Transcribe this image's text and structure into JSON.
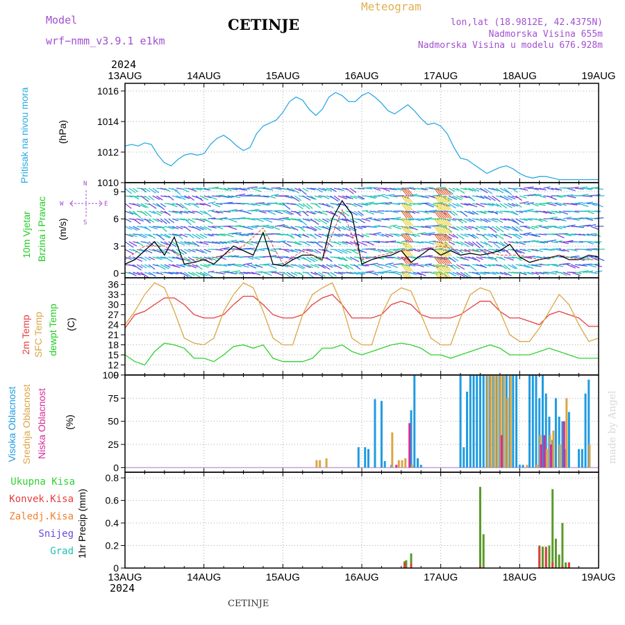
{
  "header": {
    "model_label": "Model",
    "model_name": "wrf−nmm_v3.9.1 e1km",
    "station": "CETINJE",
    "product": "Meteogram",
    "lonlat": "lon,lat (18.9812E, 42.4375N)",
    "elevation": "Nadmorska Visina 655m",
    "model_elevation": "Nadmorska Visina u modelu 676.928m",
    "year_top": "2024",
    "year_bottom": "2024",
    "footer_station": "CETINJE",
    "credit": "made by Angel"
  },
  "colors": {
    "pressure": "#2aaae2",
    "temp2m": "#e63c3c",
    "sfc": "#dba544",
    "dewpt": "#2fd12f",
    "high_cloud": "#1e9be0",
    "mid_cloud": "#dba544",
    "low_cloud": "#d62c9c",
    "total_precip": "#5a9a2a",
    "conv_precip": "#e63c3c",
    "frozen_precip": "#f08030",
    "snow": "#6a48d8",
    "hail": "#22c0b0",
    "header_purple": "#a050d0",
    "header_gold": "#e0b050"
  },
  "chart_data": [
    {
      "type": "line",
      "panel": "pressure",
      "title": "",
      "ylabel": [
        "Pritisak na nivou mora",
        "(hPa)"
      ],
      "ylim": [
        1010,
        1016.5
      ],
      "yticks": [
        1010,
        1012,
        1014,
        1016
      ],
      "x_unit": "hours since 13AUG 00UTC",
      "xlim": [
        0,
        144
      ],
      "xticks": [
        "13AUG",
        "14AUG",
        "15AUG",
        "16AUG",
        "17AUG",
        "18AUG",
        "19AUG"
      ],
      "grid": true,
      "series": [
        {
          "name": "Pritisak na nivou mora",
          "x": [
            0,
            2,
            4,
            6,
            8,
            10,
            12,
            14,
            16,
            18,
            20,
            22,
            24,
            26,
            28,
            30,
            32,
            34,
            36,
            38,
            40,
            42,
            44,
            46,
            48,
            50,
            52,
            54,
            56,
            58,
            60,
            62,
            64,
            66,
            68,
            70,
            72,
            74,
            76,
            78,
            80,
            82,
            84,
            86,
            88,
            90,
            92,
            94,
            96,
            98,
            100,
            102,
            104,
            106,
            108,
            110,
            112,
            114,
            116,
            118,
            120,
            122,
            124,
            126,
            128,
            130,
            132,
            134,
            136,
            138,
            140,
            142,
            144
          ],
          "values": [
            1012.4,
            1012.5,
            1012.4,
            1012.6,
            1012.5,
            1011.8,
            1011.3,
            1011.1,
            1011.5,
            1011.8,
            1011.9,
            1011.8,
            1011.9,
            1012.5,
            1012.9,
            1013.1,
            1012.8,
            1012.4,
            1012.1,
            1012.3,
            1013.2,
            1013.7,
            1013.9,
            1014.1,
            1014.6,
            1015.3,
            1015.6,
            1015.4,
            1014.8,
            1014.4,
            1014.8,
            1015.6,
            1015.9,
            1015.7,
            1015.3,
            1015.3,
            1015.7,
            1015.9,
            1015.6,
            1015.2,
            1014.7,
            1014.5,
            1014.8,
            1015.1,
            1014.7,
            1014.2,
            1013.8,
            1013.9,
            1013.7,
            1013.2,
            1012.3,
            1011.6,
            1011.5,
            1011.2,
            1010.9,
            1010.6,
            1010.8,
            1011.0,
            1011.1,
            1010.9,
            1010.6,
            1010.4,
            1010.3,
            1010.4,
            1010.4,
            1010.3,
            1010.2,
            1010.2,
            1010.2,
            1010.2,
            1010.2,
            1010.2,
            1010.2
          ]
        }
      ]
    },
    {
      "type": "line",
      "panel": "wind",
      "title": "",
      "ylabel": [
        "10m Vjetar",
        "Brzina i Pravac",
        "(m/s)"
      ],
      "compass": {
        "n": "N",
        "s": "S",
        "e": "E",
        "w": "W"
      },
      "ylim": [
        -0.5,
        10
      ],
      "yticks": [
        0,
        3,
        6,
        9
      ],
      "xlim": [
        0,
        144
      ],
      "grid": true,
      "series": [
        {
          "name": "10m Vjetar",
          "x": [
            0,
            3,
            6,
            9,
            12,
            15,
            18,
            21,
            24,
            27,
            30,
            33,
            36,
            39,
            42,
            45,
            48,
            51,
            54,
            57,
            60,
            63,
            66,
            69,
            72,
            75,
            78,
            81,
            84,
            87,
            90,
            93,
            96,
            99,
            102,
            105,
            108,
            111,
            114,
            117,
            120,
            123,
            126,
            129,
            132,
            135,
            138,
            141,
            144
          ],
          "values": [
            1.0,
            1.5,
            2.5,
            3.5,
            2.0,
            4.0,
            1.0,
            1.2,
            1.5,
            1.0,
            2.0,
            3.0,
            2.5,
            2.0,
            4.5,
            1.0,
            0.8,
            1.5,
            2.0,
            2.0,
            1.5,
            6.0,
            8.0,
            6.5,
            1.0,
            1.5,
            1.8,
            2.0,
            2.5,
            1.2,
            2.0,
            2.8,
            2.0,
            2.5,
            2.0,
            2.2,
            2.0,
            2.2,
            2.5,
            3.2,
            1.8,
            1.2,
            1.5,
            1.7,
            2.0,
            1.5,
            1.5,
            2.0,
            1.8
          ]
        },
        {
          "name": "gust",
          "x": [
            0,
            6,
            12,
            18,
            24,
            30,
            36,
            42,
            48,
            54,
            60,
            66,
            72,
            78,
            84,
            90,
            96,
            102,
            108,
            114,
            120,
            126,
            132,
            138,
            144
          ],
          "values": [
            1.5,
            3.0,
            3.0,
            1.5,
            1.5,
            2.0,
            3.0,
            5.0,
            1.0,
            2.5,
            1.5,
            7.0,
            1.5,
            2.0,
            2.5,
            2.5,
            3.0,
            2.5,
            2.5,
            2.0,
            2.0,
            1.5,
            2.0,
            1.5,
            1.5
          ]
        }
      ]
    },
    {
      "type": "line",
      "panel": "temperature",
      "title": "",
      "ylabel": [
        "2m Temp",
        "SFC Temp",
        "dewpt Temp",
        "(C)"
      ],
      "ylim": [
        9,
        38
      ],
      "yticks": [
        9,
        12,
        15,
        18,
        21,
        24,
        27,
        30,
        33,
        36
      ],
      "xlim": [
        0,
        144
      ],
      "grid": true,
      "series": [
        {
          "name": "2m Temp",
          "x": [
            0,
            3,
            6,
            9,
            12,
            15,
            18,
            21,
            24,
            27,
            30,
            33,
            36,
            39,
            42,
            45,
            48,
            51,
            54,
            57,
            60,
            63,
            66,
            69,
            72,
            75,
            78,
            81,
            84,
            87,
            90,
            93,
            96,
            99,
            102,
            105,
            108,
            111,
            114,
            117,
            120,
            123,
            126,
            129,
            132,
            135,
            138,
            141,
            144
          ],
          "values": [
            23,
            27,
            28,
            30,
            32,
            32,
            30,
            27,
            26,
            26,
            27,
            30,
            32.5,
            32.5,
            30,
            27,
            26,
            26,
            27,
            30,
            32,
            33,
            30,
            26,
            26,
            26,
            27,
            30,
            31,
            30,
            27,
            26,
            26,
            26,
            27,
            29,
            31,
            31,
            28,
            26,
            26,
            25,
            24,
            27,
            28,
            27,
            26,
            23.5,
            23.5
          ]
        },
        {
          "name": "SFC Temp",
          "x": [
            0,
            3,
            6,
            9,
            12,
            15,
            18,
            21,
            24,
            27,
            30,
            33,
            36,
            39,
            42,
            45,
            48,
            51,
            54,
            57,
            60,
            63,
            66,
            69,
            72,
            75,
            78,
            81,
            84,
            87,
            90,
            93,
            96,
            99,
            102,
            105,
            108,
            111,
            114,
            117,
            120,
            123,
            126,
            129,
            132,
            135,
            138,
            141,
            144
          ],
          "values": [
            24,
            28,
            33,
            36.5,
            35,
            28,
            20,
            18.5,
            18,
            20,
            28,
            33,
            36.5,
            35,
            28,
            20,
            18,
            18,
            27,
            33,
            35,
            36.5,
            30,
            20,
            18,
            18,
            27,
            33,
            35,
            34,
            27,
            20,
            18,
            18,
            26,
            33,
            35,
            34,
            28,
            21,
            19,
            19,
            23,
            28,
            33,
            30,
            24,
            19,
            20
          ]
        },
        {
          "name": "dewpt Temp",
          "x": [
            0,
            3,
            6,
            9,
            12,
            15,
            18,
            21,
            24,
            27,
            30,
            33,
            36,
            39,
            42,
            45,
            48,
            51,
            54,
            57,
            60,
            63,
            66,
            69,
            72,
            75,
            78,
            81,
            84,
            87,
            90,
            93,
            96,
            99,
            102,
            105,
            108,
            111,
            114,
            117,
            120,
            123,
            126,
            129,
            132,
            135,
            138,
            141,
            144
          ],
          "values": [
            15,
            13,
            12,
            16,
            18.5,
            18,
            17,
            14,
            14,
            13,
            15,
            17.5,
            18,
            17,
            18,
            14,
            13,
            13,
            13,
            14,
            17,
            17,
            18,
            16,
            15,
            16,
            17,
            18,
            18.5,
            18,
            17,
            15,
            15,
            14,
            15,
            16,
            17,
            18,
            17,
            15,
            15,
            15,
            16,
            17,
            16,
            15,
            14,
            14,
            14
          ]
        }
      ]
    },
    {
      "type": "bar",
      "panel": "clouds",
      "title": "",
      "ylabel": [
        "Visoka Oblacnost",
        "Srednja Oblacnost",
        "Niska Oblacnost",
        "(%)"
      ],
      "ylim": [
        -5,
        100
      ],
      "yticks": [
        0,
        25,
        50,
        75,
        100
      ],
      "xlim": [
        0,
        144
      ],
      "grid": true,
      "series": [
        {
          "name": "Visoka Oblacnost",
          "x": [
            71,
            73,
            74,
            76,
            78,
            79,
            81,
            87,
            88,
            89,
            90,
            102,
            103,
            104,
            105,
            106,
            107,
            108,
            109,
            110,
            111,
            112,
            113,
            114,
            115,
            116,
            117,
            118,
            119,
            120,
            121,
            123,
            124,
            125,
            126,
            127,
            128,
            129,
            130,
            131,
            132,
            133,
            134,
            135,
            138,
            139,
            140,
            141
          ],
          "values": [
            22,
            22,
            20,
            74,
            72,
            7,
            3,
            62,
            100,
            10,
            3,
            100,
            22,
            82,
            100,
            100,
            100,
            100,
            100,
            100,
            100,
            100,
            100,
            100,
            100,
            100,
            100,
            100,
            100,
            3,
            3,
            100,
            100,
            100,
            75,
            100,
            80,
            55,
            30,
            75,
            55,
            50,
            20,
            60,
            20,
            20,
            80,
            95
          ]
        },
        {
          "name": "Srednja Oblacnost",
          "x": [
            58,
            59,
            61,
            81,
            83,
            84,
            85,
            87,
            110,
            111,
            112,
            113,
            114,
            115,
            116,
            117,
            122,
            125,
            126,
            128,
            129,
            130,
            132,
            134,
            141
          ],
          "values": [
            8,
            8,
            10,
            38,
            8,
            8,
            10,
            3,
            100,
            100,
            100,
            100,
            100,
            100,
            75,
            100,
            3,
            3,
            35,
            20,
            35,
            40,
            25,
            75,
            25
          ]
        },
        {
          "name": "Niska Oblacnost",
          "x": [
            82,
            86,
            114,
            126,
            127,
            129,
            133
          ],
          "values": [
            3,
            48,
            35,
            25,
            35,
            25,
            50
          ]
        }
      ]
    },
    {
      "type": "bar",
      "panel": "precip",
      "title": "",
      "ylabel": [
        "1hr Precip (mm)"
      ],
      "legend": [
        "Ukupna Kisa",
        "Konvek.Kisa",
        "Zaledj.Kisa",
        "Snijeg",
        "Grad"
      ],
      "ylim": [
        0,
        0.85
      ],
      "yticks": [
        0,
        0.2,
        0.4,
        0.6,
        0.8
      ],
      "xlim": [
        0,
        144
      ],
      "xticks": [
        "13AUG",
        "14AUG",
        "15AUG",
        "16AUG",
        "17AUG",
        "18AUG",
        "19AUG"
      ],
      "grid": true,
      "series": [
        {
          "name": "Ukupna Kisa",
          "x": [
            85,
            85.5,
            87,
            108,
            109,
            126,
            127,
            128,
            129,
            130,
            131,
            132,
            133,
            134,
            135
          ],
          "values": [
            0.06,
            0.07,
            0.13,
            0.72,
            0.3,
            0.2,
            0.19,
            0.19,
            0.2,
            0.7,
            0.26,
            0.12,
            0.4,
            0.05,
            0.05
          ]
        },
        {
          "name": "Konvek.Kisa",
          "x": [
            85,
            87,
            108,
            126,
            128,
            130,
            133,
            135
          ],
          "values": [
            0.05,
            0.04,
            0.02,
            0.19,
            0.18,
            0.05,
            0.02,
            0.05
          ]
        }
      ]
    }
  ]
}
